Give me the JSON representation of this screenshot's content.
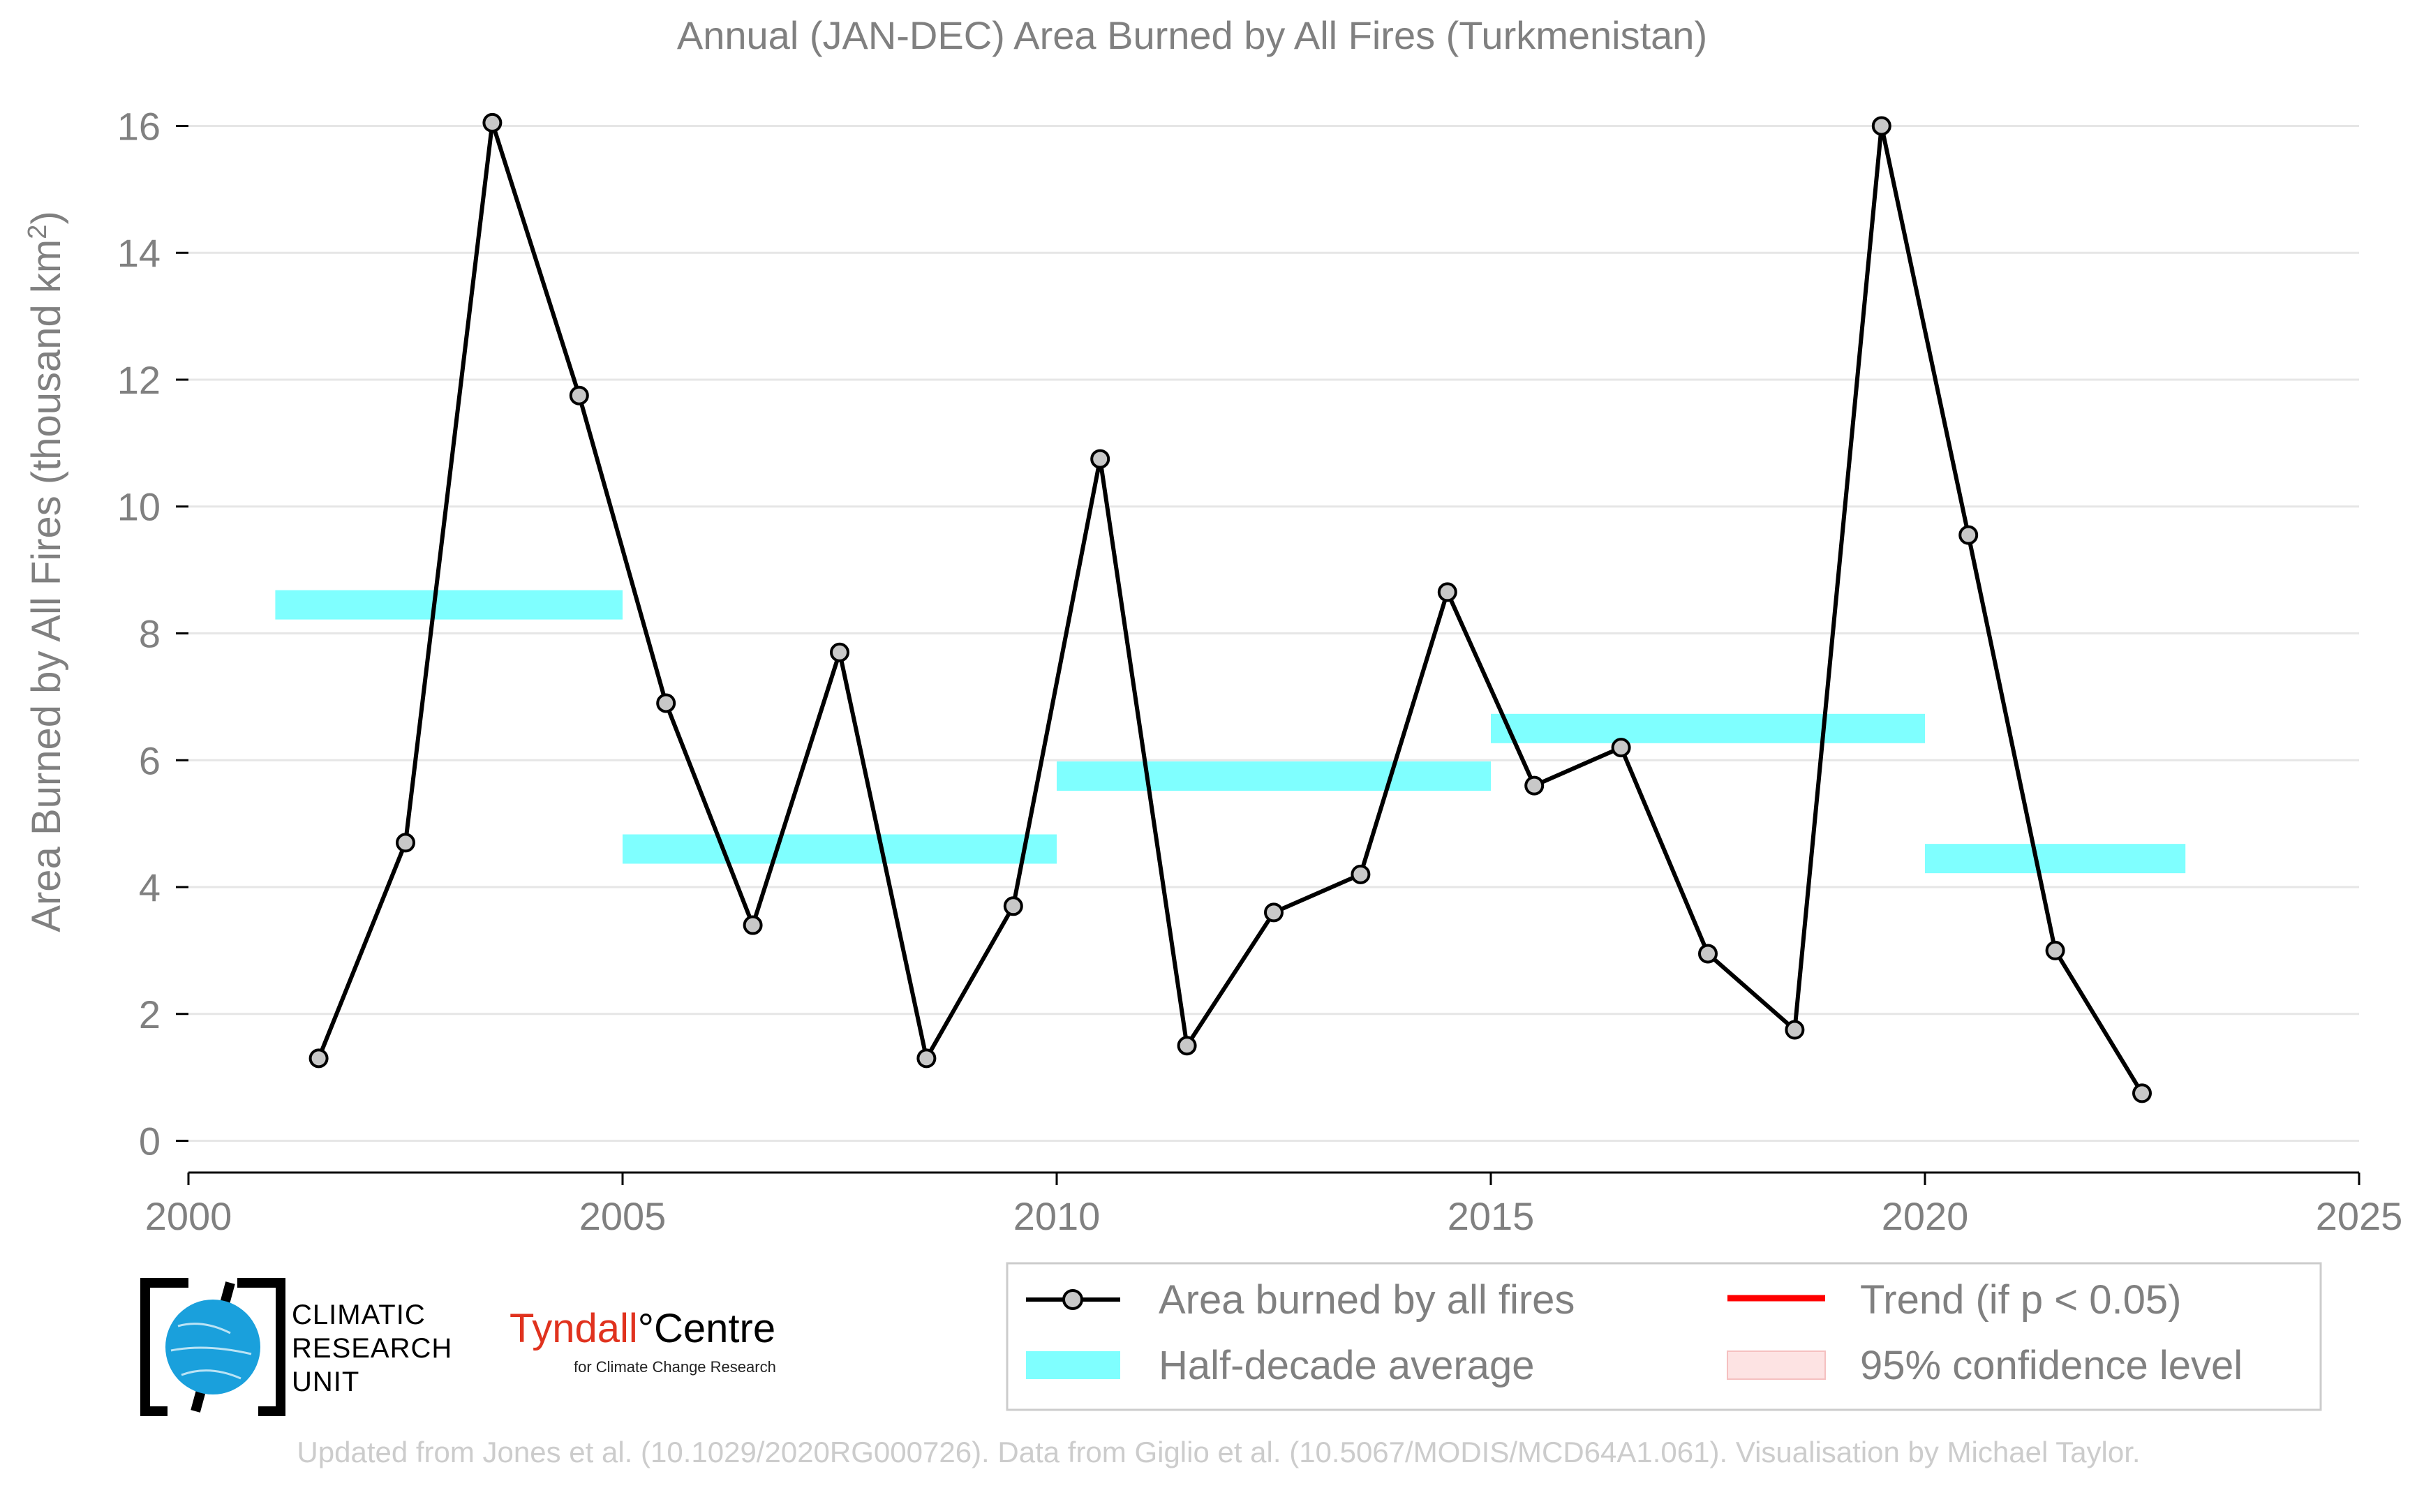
{
  "colors": {
    "line": "#000000",
    "marker_fill": "#c8c8c8",
    "half_decade": "#7fffff",
    "trend": "#ff0000",
    "confidence": "#fde3e3",
    "text": "#808080",
    "grid": "#e6e6e6",
    "footer": "#cccccc"
  },
  "chart_data": {
    "type": "line",
    "title": "Annual (JAN-DEC) Area Burned by All Fires (Turkmenistan)",
    "ylabel": "Area Burned by All Fires (thousand km",
    "ylabel_superscript": "2",
    "ylabel_close": ")",
    "xlim": [
      2000,
      2025
    ],
    "ylim": [
      -0.5,
      16.5
    ],
    "x_ticks": [
      2000,
      2005,
      2010,
      2015,
      2020,
      2025
    ],
    "y_ticks": [
      0,
      2,
      4,
      6,
      8,
      10,
      12,
      14,
      16
    ],
    "grid": true,
    "series": [
      {
        "name": "Area burned by all fires",
        "x": [
          2001.5,
          2002.5,
          2003.5,
          2004.5,
          2005.5,
          2006.5,
          2007.5,
          2008.5,
          2009.5,
          2010.5,
          2011.5,
          2012.5,
          2013.5,
          2014.5,
          2015.5,
          2016.5,
          2017.5,
          2018.5,
          2019.5,
          2020.5,
          2021.5,
          2022.5
        ],
        "values": [
          1.3,
          4.7,
          16.05,
          11.75,
          6.9,
          3.4,
          7.7,
          1.3,
          3.7,
          10.75,
          1.5,
          3.6,
          4.2,
          8.65,
          5.6,
          6.2,
          2.95,
          1.75,
          16.0,
          9.55,
          3.0,
          0.75
        ]
      }
    ],
    "half_decade_average": {
      "name": "Half-decade average",
      "segments": [
        {
          "x0": 2001,
          "x1": 2005,
          "value": 8.45
        },
        {
          "x0": 2005,
          "x1": 2010,
          "value": 4.6
        },
        {
          "x0": 2010,
          "x1": 2015,
          "value": 5.75
        },
        {
          "x0": 2015,
          "x1": 2020,
          "value": 6.5
        },
        {
          "x0": 2020,
          "x1": 2023,
          "value": 4.45
        }
      ]
    },
    "legend": {
      "position": "bottom-right",
      "entries": [
        "Area burned by all fires",
        "Half-decade average",
        "Trend (if p < 0.05)",
        "95% confidence level"
      ]
    }
  },
  "logos": {
    "cru": [
      "CLIMATIC",
      "RESEARCH",
      "UNIT"
    ],
    "tyndall_a": "Tyndall",
    "tyndall_deg": "°",
    "tyndall_b": "Centre",
    "tyndall_sub": "for Climate Change Research"
  },
  "footer": "Updated from Jones et al. (10.1029/2020RG000726). Data from Giglio et al. (10.5067/MODIS/MCD64A1.061). Visualisation by Michael Taylor."
}
